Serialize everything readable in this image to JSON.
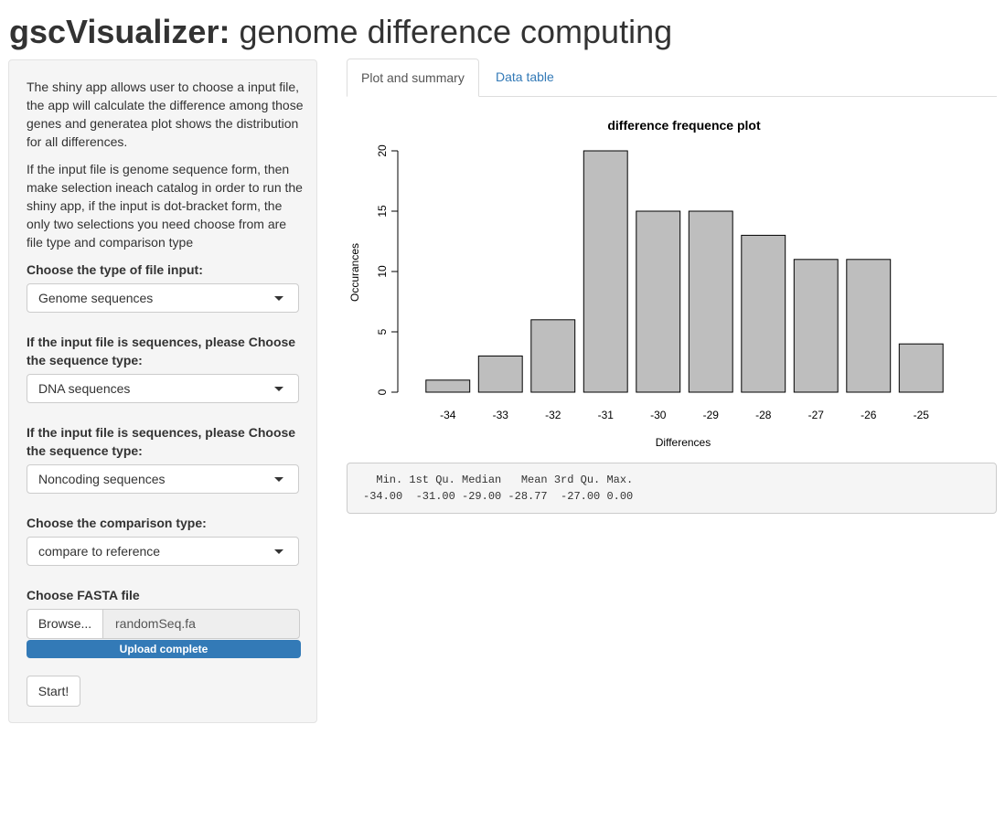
{
  "header": {
    "title_bold": "gscVisualizer:",
    "title_rest": "genome difference computing"
  },
  "sidebar": {
    "description_1": "The shiny app allows user to choose a input file, the app will calculate the difference among those genes and generatea plot shows the distribution for all differences.",
    "description_2": "If the input file is genome sequence form, then make selection ineach catalog in order to run the shiny app, if the input is dot-bracket form, the only two selections you need choose from are file type and comparison type",
    "file_type": {
      "label": "Choose the type of file input:",
      "selected": "Genome sequences"
    },
    "sequence_type_1": {
      "label": "If the input file is sequences, please Choose the sequence type:",
      "selected": "DNA sequences"
    },
    "sequence_type_2": {
      "label": "If the input file is sequences, please Choose the sequence type:",
      "selected": "Noncoding sequences"
    },
    "comparison_type": {
      "label": "Choose the comparison type:",
      "selected": "compare to reference"
    },
    "fasta": {
      "label": "Choose FASTA file",
      "browse_label": "Browse...",
      "filename": "randomSeq.fa",
      "progress_label": "Upload complete",
      "progress": 1.0
    },
    "start_label": "Start!"
  },
  "tabs": [
    {
      "label": "Plot and summary",
      "active": true
    },
    {
      "label": "Data table",
      "active": false
    }
  ],
  "chart_data": {
    "type": "bar",
    "title": "difference frequence plot",
    "xlabel": "Differences",
    "ylabel": "Occurances",
    "categories": [
      "-34",
      "-33",
      "-32",
      "-31",
      "-30",
      "-29",
      "-28",
      "-27",
      "-26",
      "-25"
    ],
    "values": [
      1,
      3,
      6,
      20,
      15,
      15,
      13,
      11,
      11,
      4
    ],
    "yticks": [
      0,
      5,
      10,
      15,
      20
    ],
    "ylim": [
      0,
      20
    ],
    "bar_color": "#bebebe",
    "grid": false
  },
  "summary": {
    "headers": [
      "Min.",
      "1st Qu.",
      "Median",
      "Mean",
      "3rd Qu.",
      "Max."
    ],
    "values": [
      "-34.00",
      "-31.00",
      "-29.00",
      "-28.77",
      "-27.00",
      "0.00"
    ]
  },
  "colors": {
    "accent": "#337ab7",
    "panel": "#f5f5f5",
    "border": "#e3e3e3"
  }
}
